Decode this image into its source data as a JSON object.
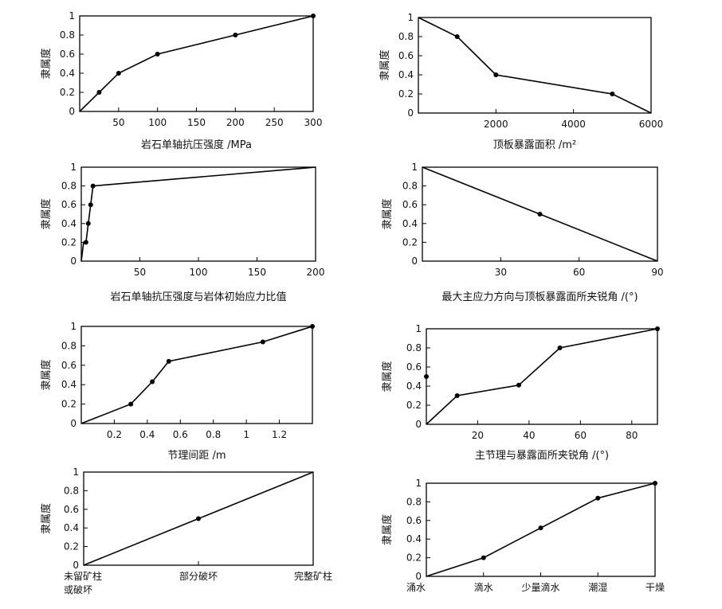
{
  "chart_data": [
    {
      "type": "line",
      "id": "p1",
      "ylabel": "隶属度",
      "xlabel": "岩石单轴抗压强度 /MPa",
      "xlim": [
        0,
        300
      ],
      "ylim": [
        0,
        1
      ],
      "xticks": [
        50,
        100,
        150,
        200,
        250,
        300
      ],
      "xtick_labels": [
        "50",
        "100",
        "150",
        "200",
        "250",
        "300"
      ],
      "yticks": [
        0,
        0.2,
        0.4,
        0.6,
        0.8,
        1
      ],
      "ytick_labels": [
        "0",
        "0.2",
        "0.4",
        "0.6",
        "0.8",
        "1"
      ],
      "x": [
        0,
        25,
        50,
        100,
        200,
        300
      ],
      "y": [
        0,
        0.2,
        0.4,
        0.6,
        0.8,
        1
      ],
      "markers": [
        false,
        true,
        true,
        true,
        true,
        true
      ]
    },
    {
      "type": "line",
      "id": "p2",
      "ylabel": "隶属度",
      "xlabel": "顶板暴露面积 /m²",
      "xlim": [
        0,
        6000
      ],
      "ylim": [
        0,
        1
      ],
      "xticks": [
        2000,
        4000,
        6000
      ],
      "xtick_labels": [
        "2000",
        "4000",
        "6000"
      ],
      "yticks": [
        0,
        0.2,
        0.4,
        0.6,
        0.8,
        1
      ],
      "ytick_labels": [
        "0",
        "0.2",
        "0.4",
        "0.6",
        "0.8",
        "1"
      ],
      "x": [
        0,
        1000,
        2000,
        5000,
        6000
      ],
      "y": [
        1,
        0.8,
        0.4,
        0.2,
        0
      ],
      "markers": [
        false,
        true,
        true,
        true,
        false
      ]
    },
    {
      "type": "line",
      "id": "p3",
      "ylabel": "隶属度",
      "xlabel": "岩石单轴抗压强度与岩体初始应力比值",
      "xlim": [
        0,
        200
      ],
      "ylim": [
        0,
        1
      ],
      "xticks": [
        50,
        100,
        150,
        200
      ],
      "xtick_labels": [
        "50",
        "100",
        "150",
        "200"
      ],
      "yticks": [
        0,
        0.2,
        0.4,
        0.6,
        0.8,
        1
      ],
      "ytick_labels": [
        "0",
        "0.2",
        "0.4",
        "0.6",
        "0.8",
        "1"
      ],
      "x": [
        0,
        2,
        4,
        6,
        8,
        10,
        200
      ],
      "y": [
        0,
        0.2,
        0.2,
        0.4,
        0.6,
        0.8,
        1
      ],
      "markers": [
        false,
        false,
        true,
        true,
        true,
        true,
        false
      ]
    },
    {
      "type": "line",
      "id": "p4",
      "ylabel": "隶属度",
      "xlabel": "最大主应力方向与顶板暴露面所夹锐角 /(°)",
      "xlim": [
        0,
        90
      ],
      "ylim": [
        0,
        1
      ],
      "xticks": [
        30,
        60,
        90
      ],
      "xtick_labels": [
        "30",
        "60",
        "90"
      ],
      "yticks": [
        0,
        0.2,
        0.4,
        0.6,
        0.8,
        1
      ],
      "ytick_labels": [
        "0",
        "0.2",
        "0.4",
        "0.6",
        "0.8",
        "1"
      ],
      "x": [
        0,
        45,
        90
      ],
      "y": [
        1,
        0.5,
        0
      ],
      "markers": [
        false,
        true,
        false
      ]
    },
    {
      "type": "line",
      "id": "p5",
      "ylabel": "隶属度",
      "xlabel": "节理间距 /m",
      "xlim": [
        0,
        1.4
      ],
      "ylim": [
        0,
        1
      ],
      "xticks": [
        0.2,
        0.4,
        0.6,
        0.8,
        1.0,
        1.2,
        1.4
      ],
      "xtick_labels": [
        "0.2",
        "0.4",
        "0.6",
        "0.8",
        "1",
        "1.2",
        ""
      ],
      "yticks": [
        0,
        0.2,
        0.4,
        0.6,
        0.8,
        1
      ],
      "ytick_labels": [
        "0",
        "0.2",
        "0.4",
        "0.6",
        "0.8",
        "1"
      ],
      "x": [
        0,
        0.3,
        0.43,
        0.53,
        1.1,
        1.4
      ],
      "y": [
        0,
        0.2,
        0.43,
        0.64,
        0.84,
        1
      ],
      "markers": [
        false,
        true,
        true,
        true,
        true,
        true
      ]
    },
    {
      "type": "line",
      "id": "p6",
      "ylabel": "隶属度",
      "xlabel": "主节理与暴露面所夹锐角 /(°)",
      "xlim": [
        0,
        90
      ],
      "ylim": [
        0,
        1
      ],
      "xticks": [
        20,
        40,
        60,
        80
      ],
      "xtick_labels": [
        "20",
        "40",
        "60",
        "80"
      ],
      "yticks": [
        0,
        0.2,
        0.4,
        0.6,
        0.8,
        1
      ],
      "ytick_labels": [
        "0",
        "0.2",
        "0.4",
        "0.6",
        "0.8",
        "1"
      ],
      "x": [
        0,
        12,
        36,
        52,
        90
      ],
      "y": [
        0,
        0.3,
        0.41,
        0.8,
        1
      ],
      "markers": [
        false,
        true,
        true,
        true,
        true
      ],
      "extra_points": [
        {
          "x": 0,
          "y": 0.5
        }
      ]
    },
    {
      "type": "line",
      "id": "p7",
      "ylabel": "隶属度",
      "xlabel": "",
      "xlim": [
        0,
        2
      ],
      "ylim": [
        0,
        1
      ],
      "xticks": [
        0,
        1,
        2
      ],
      "xtick_labels": [
        [
          "未留矿柱",
          "或破坏"
        ],
        [
          "部分破坏"
        ],
        [
          "完整矿柱"
        ]
      ],
      "yticks": [
        0,
        0.2,
        0.4,
        0.6,
        0.8,
        1
      ],
      "ytick_labels": [
        "0",
        "0.2",
        "0.4",
        "0.6",
        "0.8",
        "1"
      ],
      "x": [
        0,
        1,
        2
      ],
      "y": [
        0,
        0.5,
        1
      ],
      "markers": [
        false,
        true,
        false
      ]
    },
    {
      "type": "line",
      "id": "p8",
      "ylabel": "隶属度",
      "xlabel": "",
      "xlim": [
        0,
        4
      ],
      "ylim": [
        0,
        1
      ],
      "xticks": [
        0,
        1,
        2,
        3,
        4
      ],
      "xtick_labels": [
        [
          "涌水"
        ],
        [
          "滴水"
        ],
        [
          "少量滴水"
        ],
        [
          "潮湿"
        ],
        [
          "干燥"
        ]
      ],
      "yticks": [
        0,
        0.2,
        0.4,
        0.6,
        0.8,
        1
      ],
      "ytick_labels": [
        "0",
        "0.2",
        "0.4",
        "0.6",
        "0.8",
        "1"
      ],
      "x": [
        0,
        1,
        2,
        3,
        4
      ],
      "y": [
        0,
        0.2,
        0.52,
        0.84,
        1
      ],
      "markers": [
        false,
        true,
        true,
        true,
        true
      ]
    }
  ]
}
